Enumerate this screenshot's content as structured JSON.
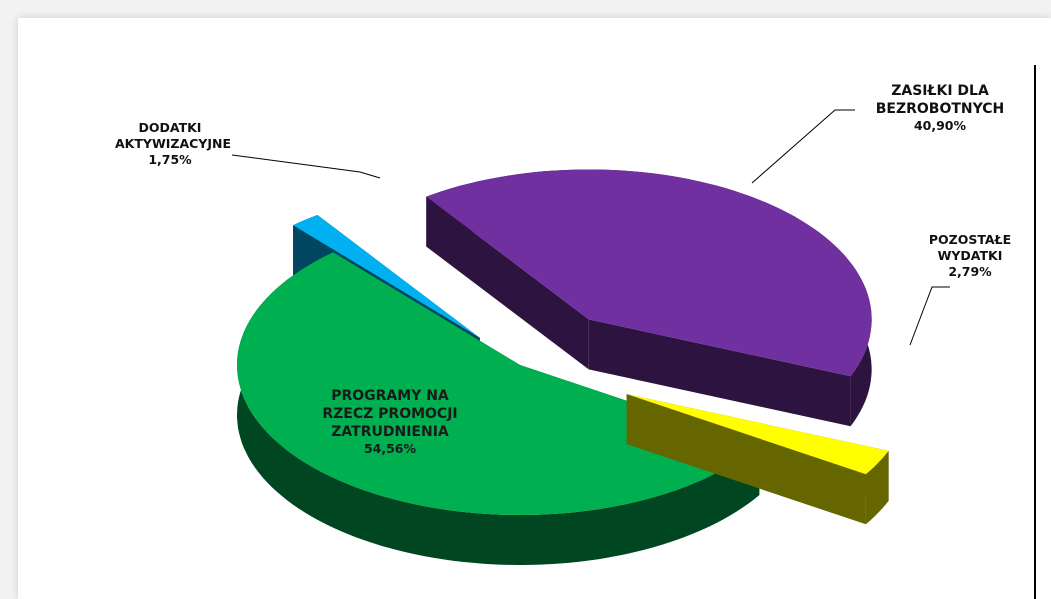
{
  "chart_data": {
    "type": "pie3d",
    "categories": [
      "ZASIŁKI DLA BEZROBOTNYCH",
      "POZOSTAŁE WYDATKI",
      "PROGRAMY NA RZECZ PROMOCJI ZATRUDNIENIA",
      "DODATKI AKTYWIZACYJNE"
    ],
    "values": [
      40.9,
      2.79,
      54.56,
      1.75
    ],
    "value_labels": [
      "40,90%",
      "2,79%",
      "54,56%",
      "1,75%"
    ],
    "colors": [
      "#7030a0",
      "#ffff00",
      "#00b050",
      "#00b0f0"
    ]
  }
}
